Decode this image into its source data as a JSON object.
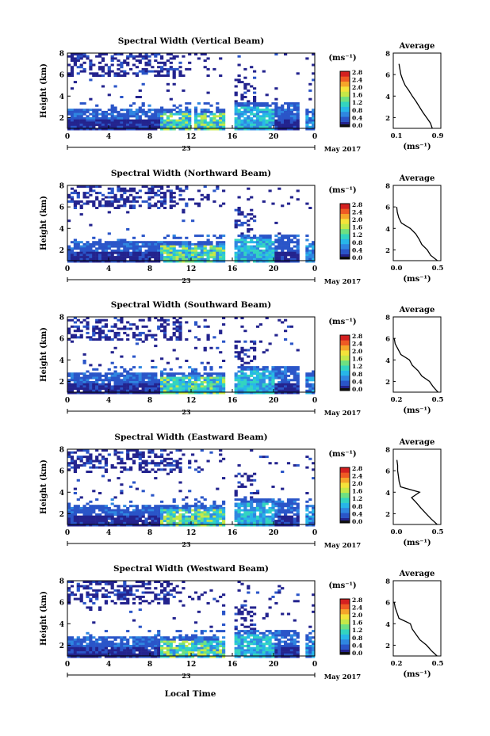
{
  "figure": {
    "xlabel_bottom": "Local Time",
    "date_label": "May 2017",
    "day_label": "23",
    "x_ticks": [
      "0",
      "4",
      "8",
      "12",
      "16",
      "20",
      "0"
    ],
    "y_ticks": [
      "2",
      "4",
      "6",
      "8"
    ],
    "colorbar_unit": "(ms⁻¹)",
    "colorbar_ticks": [
      "0.0",
      "0.4",
      "0.8",
      "1.2",
      "1.6",
      "2.0",
      "2.4",
      "2.8"
    ],
    "avg_title": "Average",
    "avg_unit": "(ms⁻¹)",
    "ylabel": "Height (km)",
    "colors": [
      "#23238e",
      "#2a55c8",
      "#2f86e0",
      "#27b6e8",
      "#33d4c0",
      "#6ee082",
      "#c6e848",
      "#f5e33a",
      "#f5a52a",
      "#ee5a24",
      "#d42020"
    ]
  },
  "chart_data": [
    {
      "type": "heatmap",
      "title": "Spectral Width (Vertical Beam)",
      "x_range": [
        0,
        24
      ],
      "y_range": [
        1,
        8
      ],
      "avg_ticks": [
        "0.1",
        "0.9"
      ],
      "avg_xlim": [
        0,
        1.0
      ],
      "avg_profile": {
        "height": [
          1.0,
          1.5,
          2.0,
          2.5,
          3.0,
          3.5,
          4.0,
          4.5,
          5.0,
          5.5,
          6.0,
          6.5,
          7.0
        ],
        "width": [
          0.82,
          0.78,
          0.7,
          0.62,
          0.55,
          0.48,
          0.4,
          0.33,
          0.25,
          0.2,
          0.16,
          0.14,
          0.12
        ]
      }
    },
    {
      "type": "heatmap",
      "title": "Spectral Width (Northward Beam)",
      "x_range": [
        0,
        24
      ],
      "y_range": [
        1,
        8
      ],
      "avg_ticks": [
        "0.0",
        "0.5"
      ],
      "avg_xlim": [
        0,
        0.7
      ],
      "avg_profile": {
        "height": [
          1.0,
          1.5,
          2.0,
          2.5,
          3.0,
          3.5,
          4.0,
          4.5,
          5.0,
          5.5,
          6.0
        ],
        "width": [
          0.65,
          0.55,
          0.5,
          0.42,
          0.38,
          0.33,
          0.25,
          0.12,
          0.08,
          0.06,
          0.05
        ]
      }
    },
    {
      "type": "heatmap",
      "title": "Spectral Width (Southward Beam)",
      "x_range": [
        0,
        24
      ],
      "y_range": [
        1,
        8
      ],
      "avg_ticks": [
        "0.2",
        "0.5"
      ],
      "avg_xlim": [
        0.1,
        0.6
      ],
      "avg_profile": {
        "height": [
          1.0,
          1.5,
          2.0,
          2.5,
          3.0,
          3.5,
          4.0,
          4.5,
          5.0,
          5.5,
          6.0
        ],
        "width": [
          0.57,
          0.52,
          0.48,
          0.4,
          0.36,
          0.3,
          0.27,
          0.18,
          0.15,
          0.12,
          0.11
        ]
      }
    },
    {
      "type": "heatmap",
      "title": "Spectral Width (Eastward Beam)",
      "x_range": [
        0,
        24
      ],
      "y_range": [
        1,
        8
      ],
      "avg_ticks": [
        "0.0",
        "0.5"
      ],
      "avg_xlim": [
        0,
        0.65
      ],
      "avg_profile": {
        "height": [
          1.0,
          1.5,
          2.0,
          2.5,
          3.0,
          3.5,
          4.0,
          4.5,
          5.0,
          5.5,
          6.0,
          6.5,
          7.0
        ],
        "width": [
          0.6,
          0.52,
          0.45,
          0.38,
          0.32,
          0.25,
          0.36,
          0.1,
          0.08,
          0.07,
          0.06,
          0.06,
          0.05
        ]
      }
    },
    {
      "type": "heatmap",
      "title": "Spectral Width (Westward Beam)",
      "x_range": [
        0,
        24
      ],
      "y_range": [
        1,
        8
      ],
      "avg_ticks": [
        "0.2",
        "0.5"
      ],
      "avg_xlim": [
        0.1,
        0.6
      ],
      "avg_profile": {
        "height": [
          1.0,
          1.5,
          2.0,
          2.5,
          3.0,
          3.5,
          4.0,
          4.5,
          5.0,
          5.5,
          6.0
        ],
        "width": [
          0.56,
          0.5,
          0.45,
          0.38,
          0.34,
          0.3,
          0.28,
          0.16,
          0.14,
          0.12,
          0.11
        ]
      }
    }
  ]
}
